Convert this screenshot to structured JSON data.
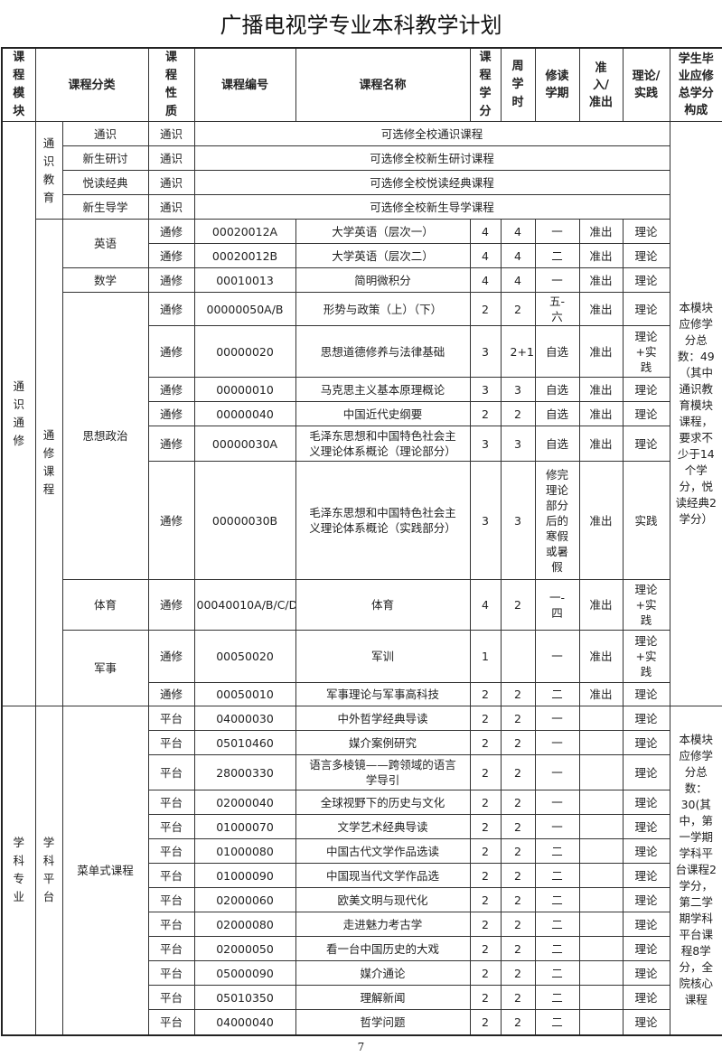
{
  "title": "广播电视学专业本科教学计划",
  "page_number": "7",
  "headers": {
    "module": "课程模块",
    "category": "课程分类",
    "nature": "课程性质",
    "code": "课程编号",
    "name": "课程名称",
    "credits": "课程学分",
    "hours": "周学时",
    "semester": "修读学期",
    "access": "准入/准出",
    "type": "理论/实践",
    "requirement": "学生毕业应修总学分构成"
  },
  "modules": [
    {
      "name": "通识通修",
      "note": "本模块应修学分总数：49（其中通识教育模块课程，要求不少于14个学分，悦读经典2学分）",
      "groups": [
        {
          "name": "通识教育",
          "subgroups": [
            {
              "name": "通识",
              "courses": [
                {
                  "nature": "通识",
                  "merged": "可选修全校通识课程"
                }
              ]
            },
            {
              "name": "新生研讨",
              "courses": [
                {
                  "nature": "通识",
                  "merged": "可选修全校新生研讨课程"
                }
              ]
            },
            {
              "name": "悦读经典",
              "courses": [
                {
                  "nature": "通识",
                  "merged": "可选修全校悦读经典课程"
                }
              ]
            },
            {
              "name": "新生导学",
              "courses": [
                {
                  "nature": "通识",
                  "merged": "可选修全校新生导学课程"
                }
              ]
            }
          ]
        },
        {
          "name": "通修课程",
          "subgroups": [
            {
              "name": "英语",
              "courses": [
                {
                  "nature": "通修",
                  "code": "00020012A",
                  "name": "大学英语（层次一）",
                  "credits": "4",
                  "hours": "4",
                  "semester": "一",
                  "access": "准出",
                  "type": "理论"
                },
                {
                  "nature": "通修",
                  "code": "00020012B",
                  "name": "大学英语（层次二）",
                  "credits": "4",
                  "hours": "4",
                  "semester": "二",
                  "access": "准出",
                  "type": "理论"
                }
              ]
            },
            {
              "name": "数学",
              "courses": [
                {
                  "nature": "通修",
                  "code": "00010013",
                  "name": "简明微积分",
                  "credits": "4",
                  "hours": "4",
                  "semester": "一",
                  "access": "准出",
                  "type": "理论"
                }
              ]
            },
            {
              "name": "思想政治",
              "courses": [
                {
                  "nature": "通修",
                  "code": "00000050A/B",
                  "name": "形势与政策（上）（下）",
                  "credits": "2",
                  "hours": "2",
                  "semester": "五-六",
                  "access": "准出",
                  "type": "理论"
                },
                {
                  "nature": "通修",
                  "code": "00000020",
                  "name": "思想道德修养与法律基础",
                  "credits": "3",
                  "hours": "2+1",
                  "semester": "自选",
                  "access": "准出",
                  "type": "理论+实践"
                },
                {
                  "nature": "通修",
                  "code": "00000010",
                  "name": "马克思主义基本原理概论",
                  "credits": "3",
                  "hours": "3",
                  "semester": "自选",
                  "access": "准出",
                  "type": "理论"
                },
                {
                  "nature": "通修",
                  "code": "00000040",
                  "name": "中国近代史纲要",
                  "credits": "2",
                  "hours": "2",
                  "semester": "自选",
                  "access": "准出",
                  "type": "理论"
                },
                {
                  "nature": "通修",
                  "code": "00000030A",
                  "name": "毛泽东思想和中国特色社会主义理论体系概论（理论部分）",
                  "credits": "3",
                  "hours": "3",
                  "semester": "自选",
                  "access": "准出",
                  "type": "理论"
                },
                {
                  "nature": "通修",
                  "code": "00000030B",
                  "name": "毛泽东思想和中国特色社会主义理论体系概论（实践部分）",
                  "credits": "3",
                  "hours": "3",
                  "semester": "修完理论部分后的寒假或暑假",
                  "access": "准出",
                  "type": "实践"
                }
              ]
            },
            {
              "name": "体育",
              "courses": [
                {
                  "nature": "通修",
                  "code": "00040010A/B/C/D",
                  "name": "体育",
                  "credits": "4",
                  "hours": "2",
                  "semester": "一-四",
                  "access": "准出",
                  "type": "理论+实践"
                }
              ]
            },
            {
              "name": "军事",
              "courses": [
                {
                  "nature": "通修",
                  "code": "00050020",
                  "name": "军训",
                  "credits": "1",
                  "hours": "",
                  "semester": "一",
                  "access": "准出",
                  "type": "理论+实践"
                },
                {
                  "nature": "通修",
                  "code": "00050010",
                  "name": "军事理论与军事高科技",
                  "credits": "2",
                  "hours": "2",
                  "semester": "二",
                  "access": "准出",
                  "type": "理论"
                }
              ]
            }
          ]
        }
      ]
    },
    {
      "name": "学科专业",
      "note": "本模块应修学分总数：30(其中，第一学期学科平台课程2学分，第二学期学科平台课程8学分，全院核心课程",
      "groups": [
        {
          "name": "学科平台",
          "subgroups": [
            {
              "name": "菜单式课程",
              "courses": [
                {
                  "nature": "平台",
                  "code": "04000030",
                  "name": "中外哲学经典导读",
                  "credits": "2",
                  "hours": "2",
                  "semester": "一",
                  "access": "",
                  "type": "理论"
                },
                {
                  "nature": "平台",
                  "code": "05010460",
                  "name": "媒介案例研究",
                  "credits": "2",
                  "hours": "2",
                  "semester": "一",
                  "access": "",
                  "type": "理论"
                },
                {
                  "nature": "平台",
                  "code": "28000330",
                  "name": "语言多棱镜——跨领域的语言学导引",
                  "credits": "2",
                  "hours": "2",
                  "semester": "一",
                  "access": "",
                  "type": "理论"
                },
                {
                  "nature": "平台",
                  "code": "02000040",
                  "name": "全球视野下的历史与文化",
                  "credits": "2",
                  "hours": "2",
                  "semester": "一",
                  "access": "",
                  "type": "理论"
                },
                {
                  "nature": "平台",
                  "code": "01000070",
                  "name": "文学艺术经典导读",
                  "credits": "2",
                  "hours": "2",
                  "semester": "一",
                  "access": "",
                  "type": "理论"
                },
                {
                  "nature": "平台",
                  "code": "01000080",
                  "name": "中国古代文学作品选读",
                  "credits": "2",
                  "hours": "2",
                  "semester": "二",
                  "access": "",
                  "type": "理论"
                },
                {
                  "nature": "平台",
                  "code": "01000090",
                  "name": "中国现当代文学作品选",
                  "credits": "2",
                  "hours": "2",
                  "semester": "二",
                  "access": "",
                  "type": "理论"
                },
                {
                  "nature": "平台",
                  "code": "02000060",
                  "name": "欧美文明与现代化",
                  "credits": "2",
                  "hours": "2",
                  "semester": "二",
                  "access": "",
                  "type": "理论"
                },
                {
                  "nature": "平台",
                  "code": "02000080",
                  "name": "走进魅力考古学",
                  "credits": "2",
                  "hours": "2",
                  "semester": "二",
                  "access": "",
                  "type": "理论"
                },
                {
                  "nature": "平台",
                  "code": "02000050",
                  "name": "看一台中国历史的大戏",
                  "credits": "2",
                  "hours": "2",
                  "semester": "二",
                  "access": "",
                  "type": "理论"
                },
                {
                  "nature": "平台",
                  "code": "05000090",
                  "name": "媒介通论",
                  "credits": "2",
                  "hours": "2",
                  "semester": "二",
                  "access": "",
                  "type": "理论"
                },
                {
                  "nature": "平台",
                  "code": "05010350",
                  "name": "理解新闻",
                  "credits": "2",
                  "hours": "2",
                  "semester": "二",
                  "access": "",
                  "type": "理论"
                },
                {
                  "nature": "平台",
                  "code": "04000040",
                  "name": "哲学问题",
                  "credits": "2",
                  "hours": "2",
                  "semester": "二",
                  "access": "",
                  "type": "理论"
                }
              ]
            }
          ]
        }
      ]
    }
  ]
}
